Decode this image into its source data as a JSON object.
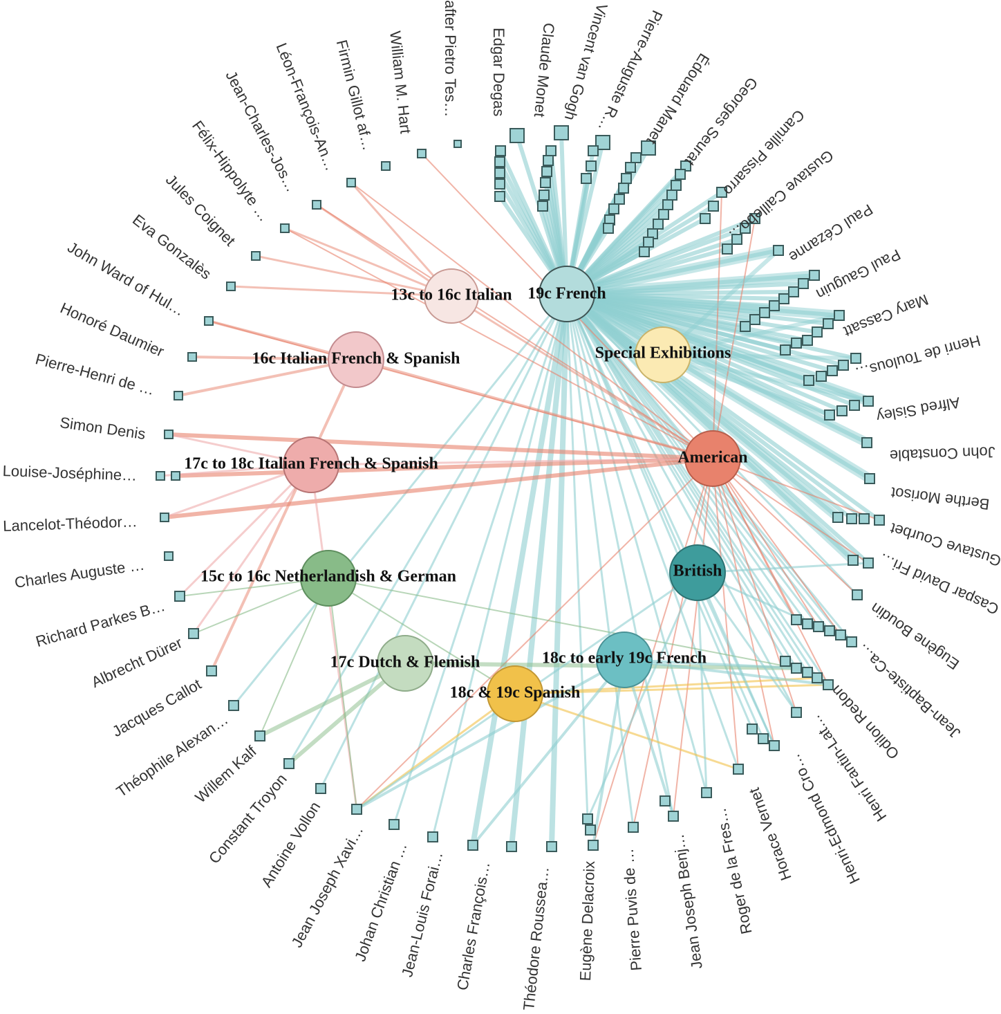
{
  "departments": [
    {
      "id": "13-16-italian",
      "label": "13c to 16c Italian",
      "color": "#f7e6e3",
      "stroke": "#c99a94"
    },
    {
      "id": "19c-french",
      "label": "19c French",
      "color": "#b3dcdc",
      "stroke": "#3f5454",
      "highlight": true
    },
    {
      "id": "16-italian-fr-sp",
      "label": "16c Italian French & Spanish",
      "color": "#f2c8ca",
      "stroke": "#c38b8f"
    },
    {
      "id": "special",
      "label": "Special Exhibitions",
      "color": "#fbeab3",
      "stroke": "#c9b36a"
    },
    {
      "id": "17-18-italian",
      "label": "17c to 18c Italian French & Spanish",
      "color": "#eeacab",
      "stroke": "#b77474"
    },
    {
      "id": "american",
      "label": "American",
      "color": "#e8826c",
      "stroke": "#b85e4b"
    },
    {
      "id": "15-16-neth",
      "label": "15c to 16c Netherlandish & German",
      "color": "#88bb88",
      "stroke": "#5e8e5e"
    },
    {
      "id": "british",
      "label": "British",
      "color": "#3e9c9c",
      "stroke": "#2d7373"
    },
    {
      "id": "17-dutch",
      "label": "17c Dutch & Flemish",
      "color": "#c4dcc0",
      "stroke": "#8fac8a"
    },
    {
      "id": "18-19-french",
      "label": "18c to early 19c French",
      "color": "#6cbfc3",
      "stroke": "#4a9296"
    },
    {
      "id": "18-19-spanish",
      "label": "18c & 19c Spanish",
      "color": "#f1c14a",
      "stroke": "#c29734"
    }
  ],
  "artists": [
    "after Pietro Tes…",
    "Edgar Degas",
    "Claude Monet",
    "Vincent van Gogh",
    "Pierre-Auguste R…",
    "Édouard Manet",
    "Georges Seurat",
    "Camille Pissarro",
    "Gustave Caillebo…",
    "Paul Cézanne",
    "Paul Gauguin",
    "Mary Cassatt",
    "Henri de Toulous…",
    "Alfred Sisley",
    "John Constable",
    "Berthe Morisot",
    "Gustave Courbet",
    "Caspar David Fri…",
    "Eugène Boudin",
    "Jean-Baptiste-Ca…",
    "Odilon Redon",
    "Henri Fantin-Lat…",
    "Henri-Edmond Cro…",
    "Horace Vernet",
    "Roger de la Fres…",
    "Jean Joseph Benj…",
    "Pierre Puvis de …",
    "Eugène Delacroix",
    "Théodore Roussea…",
    "Charles François…",
    "Jean-Louis Forai…",
    "Johan Christian …",
    "Jean Joseph Xavi…",
    "Antoine Vollon",
    "Constant Troyon",
    "Willem Kalf",
    "Théophile Alexan…",
    "Jacques Callot",
    "Albrecht Dürer",
    "Richard Parkes B…",
    "Charles Auguste …",
    "Lancelot-Théodor…",
    "Louise-Joséphine…",
    "Simon Denis",
    "Pierre-Henri de …",
    "Honoré Daumier",
    "John Ward of Hul…",
    "Eva Gonzalès",
    "Jules Coignet",
    "Félix-Hippolyte …",
    "Jean-Charles-Jos…",
    "Léon-François-An…",
    "Firmin Gillot af…",
    "William M. Hart"
  ],
  "colors": {
    "french_link": "#8fcfd1",
    "american_link": "#e8826c",
    "italian_link": "#eeacab",
    "green_link": "#88bb88",
    "yellow_link": "#f1c14a",
    "artist_fill": "#9fd3d5"
  }
}
